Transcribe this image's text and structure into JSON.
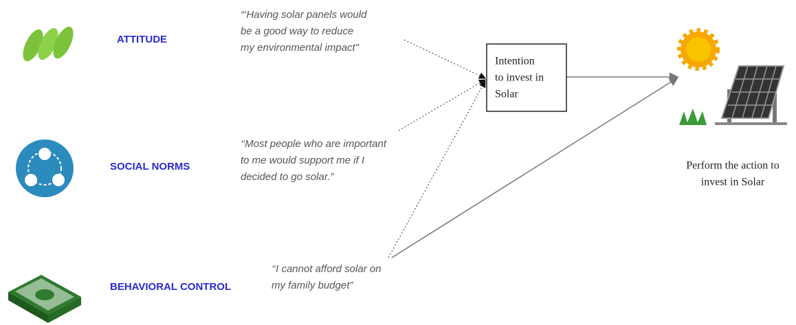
{
  "factors": [
    {
      "label": "ATTITUDE",
      "quote": [
        "“‘Having solar panels would",
        "be a good way to reduce",
        "my environmental impact”"
      ]
    },
    {
      "label": "SOCIAL NORMS",
      "quote": [
        "‘‘Most people who are important",
        "to me would support me if I",
        "decided to go solar.”"
      ]
    },
    {
      "label": "BEHAVIORAL CONTROL",
      "quote": [
        "‘‘I cannot afford solar on",
        "my family budget”"
      ]
    }
  ],
  "intention": [
    "Intention",
    "to invest in",
    "Solar"
  ],
  "action": [
    "Perform the action to",
    "invest in Solar"
  ]
}
